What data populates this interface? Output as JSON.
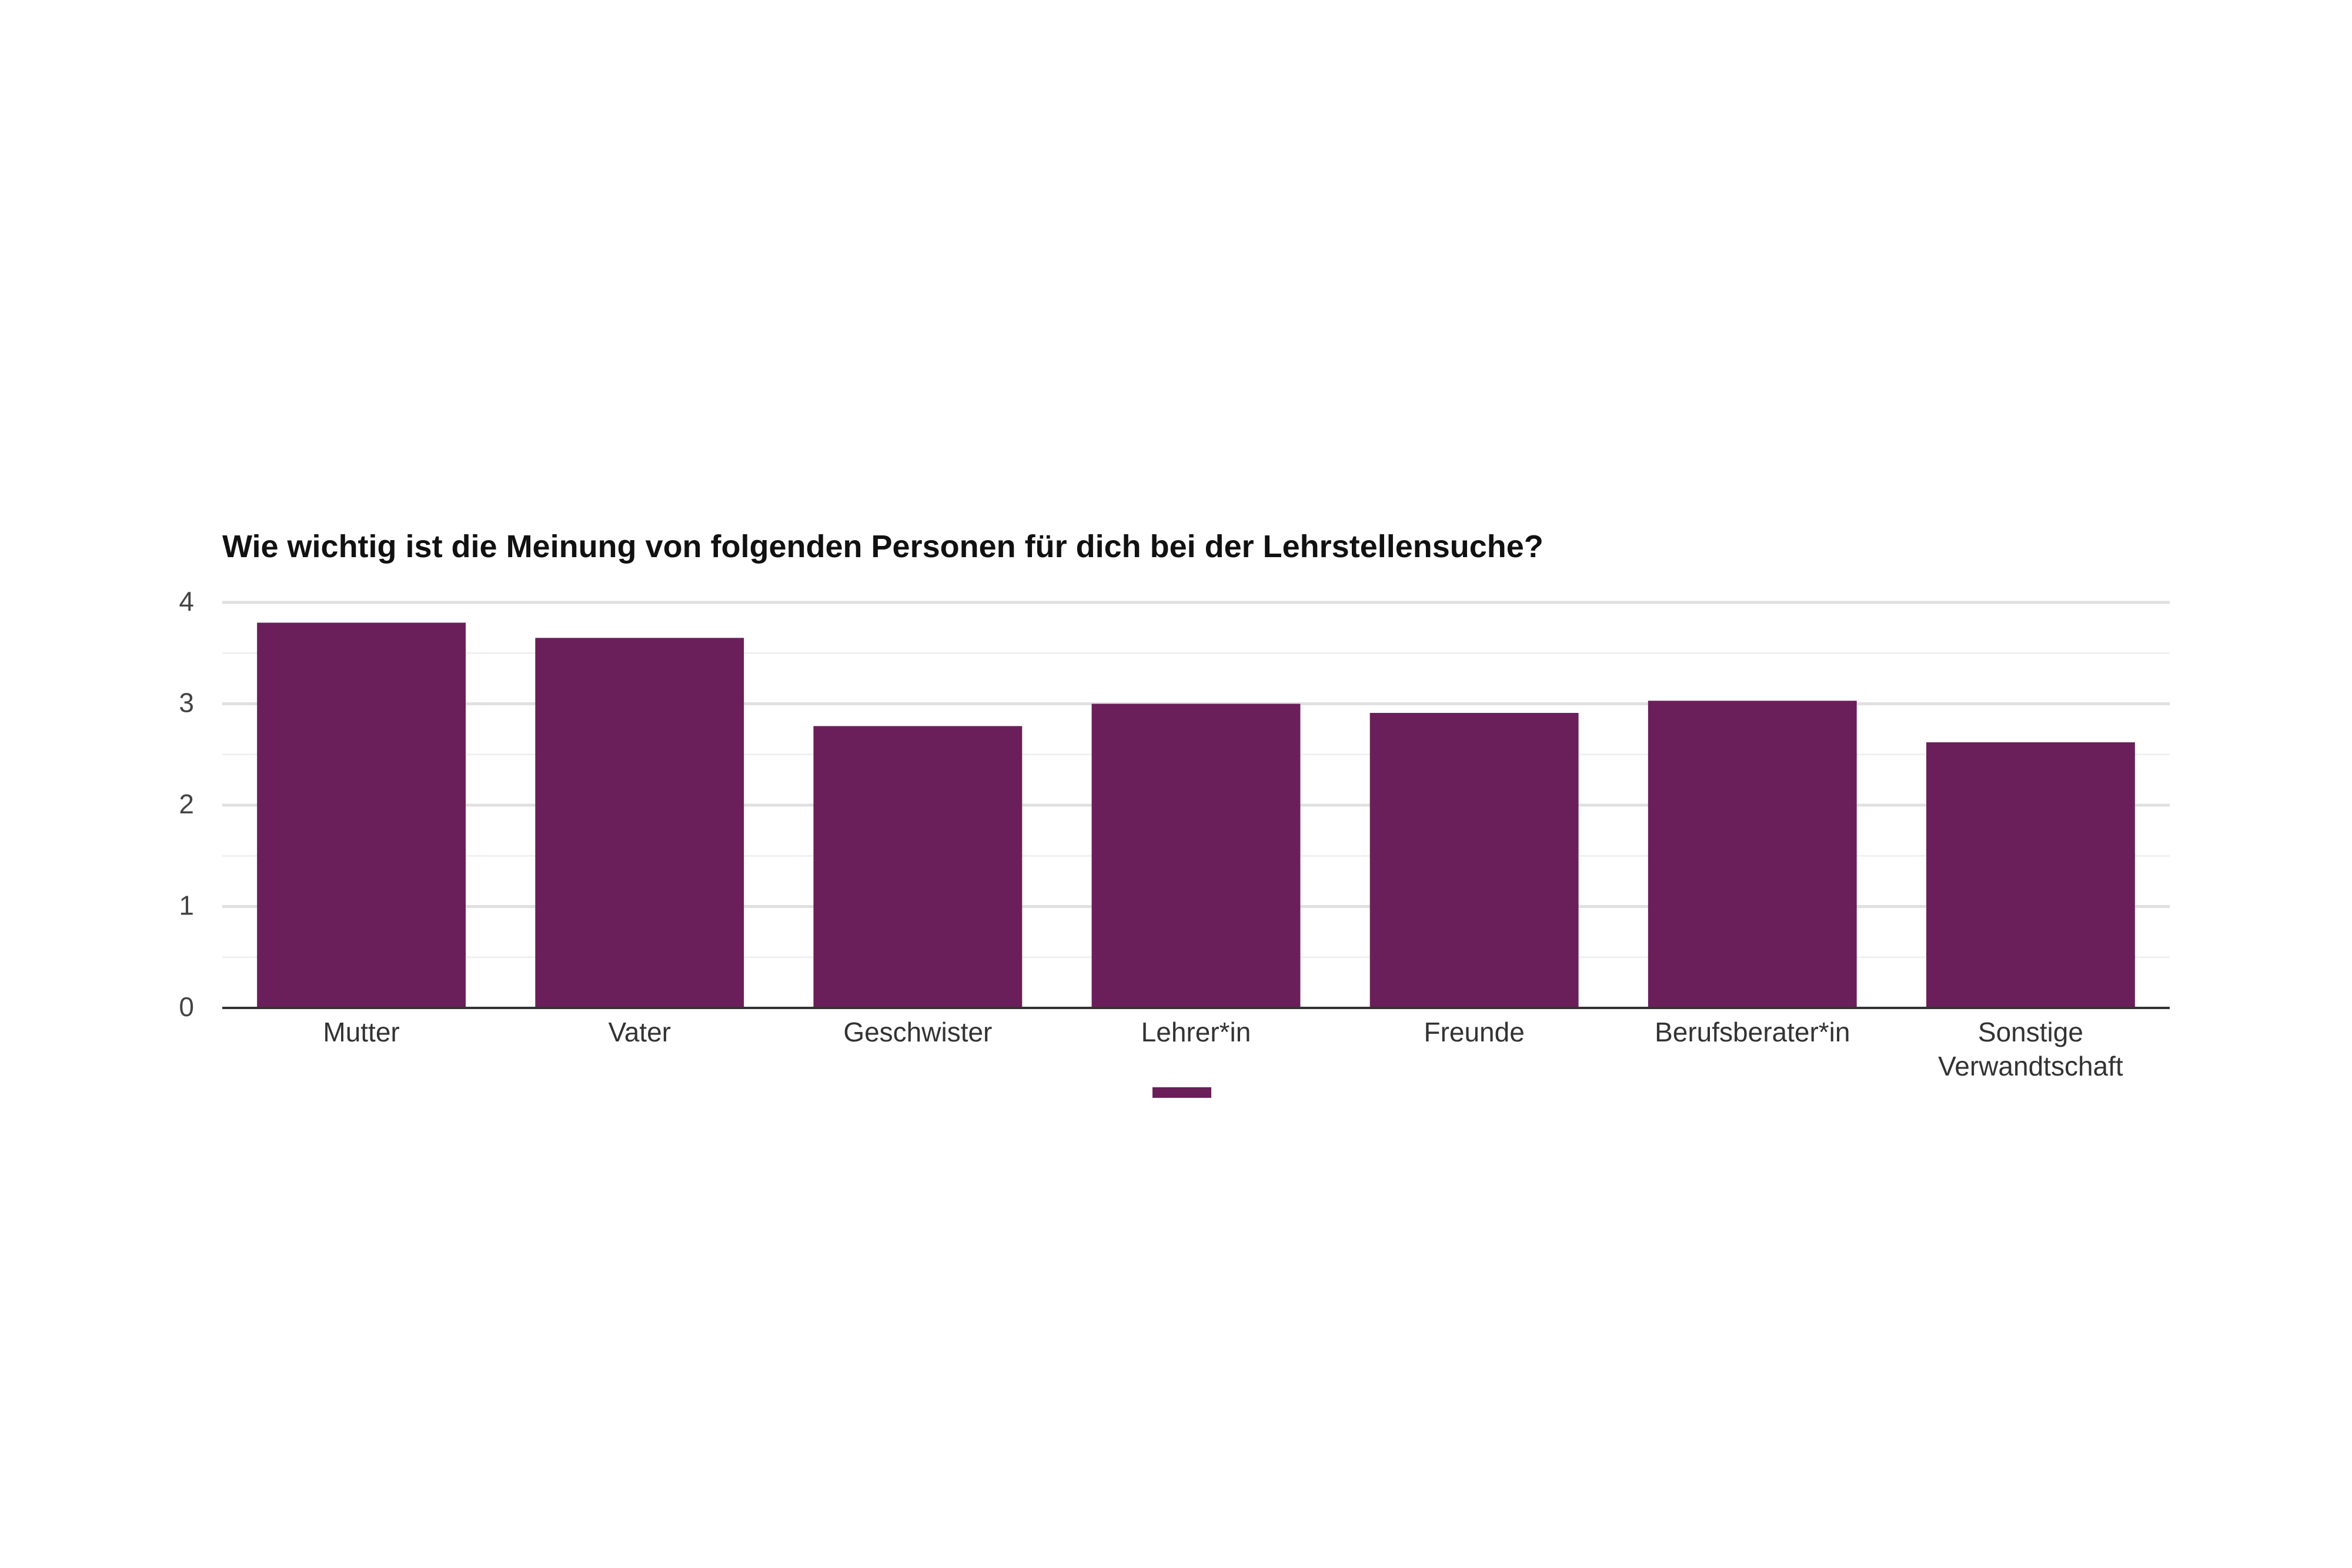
{
  "chart_data": {
    "type": "bar",
    "title": "Wie wichtig ist die Meinung von folgenden Personen für dich bei der Lehrstellensuche?",
    "xlabel": "",
    "ylabel": "",
    "categories": [
      "Mutter",
      "Vater",
      "Geschwister",
      "Lehrer*in",
      "Freunde",
      "Berufsberater*in",
      "Sonstige Verwandtschaft"
    ],
    "series": [
      {
        "values": [
          3.8,
          3.65,
          2.78,
          3.0,
          2.91,
          3.03,
          2.62
        ]
      }
    ],
    "ylim": [
      0,
      4
    ],
    "yticks": [
      "0",
      "1",
      "2",
      "3",
      "4"
    ],
    "grid": true,
    "legend": "bottom",
    "bar_color": "#6a1f5a",
    "gridline_color": "#e0e0e0",
    "minor_gridline_color": "#f0f0f0",
    "axis_color": "#333333"
  }
}
